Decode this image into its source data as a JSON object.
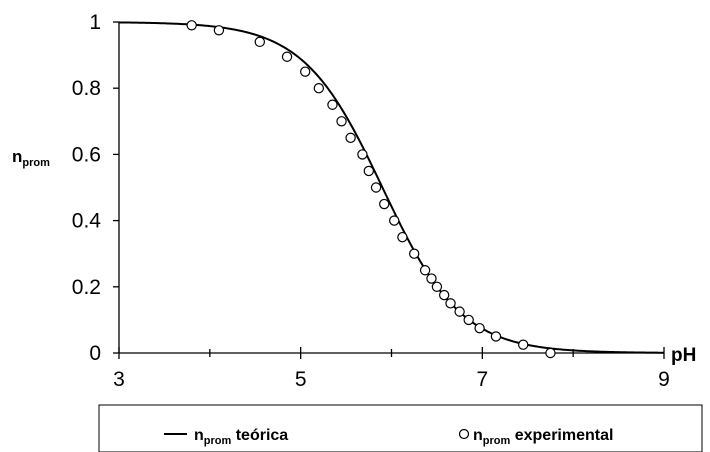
{
  "chart_data": {
    "type": "line",
    "title": "",
    "xlabel": "pH",
    "ylabel": {
      "main": "n",
      "sub": "prom"
    },
    "xlim": [
      3,
      9
    ],
    "ylim": [
      0,
      1
    ],
    "x_ticks": [
      "3",
      "5",
      "7",
      "9"
    ],
    "y_ticks": [
      "0",
      "0.2",
      "0.4",
      "0.6",
      "0.8",
      "1"
    ],
    "grid": false,
    "legend_placement": "bottom",
    "series": [
      {
        "kind": "curve",
        "style": "solid-line",
        "color": "#000000",
        "legend": {
          "main": "n",
          "sub": "prom",
          "rest": " teórica"
        },
        "model": {
          "form": "1/(1+10^(pH-pKa))",
          "pKa": 5.9
        }
      },
      {
        "kind": "points",
        "style": "open-circle",
        "color": "#000000",
        "legend": {
          "main": "n",
          "sub": "prom",
          "rest": " experimental"
        },
        "points": [
          [
            3.8,
            0.99
          ],
          [
            4.1,
            0.975
          ],
          [
            4.55,
            0.94
          ],
          [
            4.85,
            0.895
          ],
          [
            5.05,
            0.85
          ],
          [
            5.2,
            0.8
          ],
          [
            5.35,
            0.75
          ],
          [
            5.45,
            0.7
          ],
          [
            5.55,
            0.65
          ],
          [
            5.68,
            0.6
          ],
          [
            5.75,
            0.55
          ],
          [
            5.83,
            0.5
          ],
          [
            5.92,
            0.45
          ],
          [
            6.03,
            0.4
          ],
          [
            6.12,
            0.35
          ],
          [
            6.25,
            0.3
          ],
          [
            6.37,
            0.25
          ],
          [
            6.44,
            0.225
          ],
          [
            6.5,
            0.2
          ],
          [
            6.58,
            0.175
          ],
          [
            6.65,
            0.15
          ],
          [
            6.75,
            0.125
          ],
          [
            6.85,
            0.1
          ],
          [
            6.97,
            0.075
          ],
          [
            7.15,
            0.05
          ],
          [
            7.45,
            0.025
          ],
          [
            7.75,
            0.0
          ]
        ]
      }
    ]
  }
}
